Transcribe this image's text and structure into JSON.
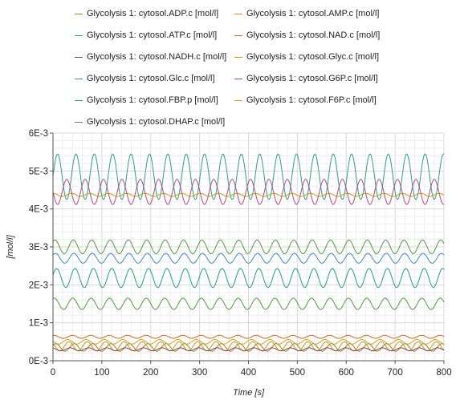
{
  "chart_data": {
    "type": "line",
    "xlabel": "Time [s]",
    "ylabel": "[mol/l]",
    "xlim": [
      0,
      800
    ],
    "ylim": [
      0,
      0.006
    ],
    "grid": true,
    "legend_position": "top",
    "x_ticks": [
      "0",
      "100",
      "200",
      "300",
      "400",
      "500",
      "600",
      "700",
      "800"
    ],
    "y_ticks": [
      "0E-3",
      "1E-3",
      "2E-3",
      "3E-3",
      "4E-3",
      "5E-3",
      "6E-3"
    ],
    "oscillation_period_s": 37.6,
    "series": [
      {
        "name": "Glycolysis 1: cytosol.ADP.c [mol/l]",
        "color": "#8a8a2a",
        "mean": 0.00035,
        "amplitude": 0.0001,
        "phase": 0.6
      },
      {
        "name": "Glycolysis 1: cytosol.AMP.c [mol/l]",
        "color": "#c8961e",
        "mean": 0.00038,
        "amplitude": 0.00012,
        "phase": 2.4
      },
      {
        "name": "Glycolysis 1: cytosol.ATP.c [mol/l]",
        "color": "#2f9e8a",
        "mean": 0.00485,
        "amplitude": 0.0006,
        "phase": 0.0
      },
      {
        "name": "Glycolysis 1: cytosol.NAD.c [mol/l]",
        "color": "#d2691e",
        "mean": 0.00063,
        "amplitude": 4e-05,
        "phase": 1.2
      },
      {
        "name": "Glycolysis 1: cytosol.NADH.c [mol/l]",
        "color": "#9a3a4a",
        "mean": 0.0003,
        "amplitude": 4e-05,
        "phase": 2.0
      },
      {
        "name": "Glycolysis 1: cytosol.Glyc.c [mol/l]",
        "color": "#c8a000",
        "mean": 0.00437,
        "amplitude": 4e-05,
        "phase": 1.5
      },
      {
        "name": "Glycolysis 1: cytosol.Glc.c [mol/l]",
        "color": "#3b8bc4",
        "mean": 0.0027,
        "amplitude": 0.00013,
        "phase": 0.7
      },
      {
        "name": "Glycolysis 1: cytosol.G6P.c [mol/l]",
        "color": "#b04a8a",
        "mean": 0.00445,
        "amplitude": 0.00033,
        "phase": 3.14
      },
      {
        "name": "Glycolysis 1: cytosol.FBP.p [mol/l]",
        "color": "#1e9e8a",
        "mean": 0.00218,
        "amplitude": 0.00025,
        "phase": 0.3
      },
      {
        "name": "Glycolysis 1: cytosol.F6P.c [mol/l]",
        "color": "#d4a017",
        "mean": 0.0005,
        "amplitude": 6e-05,
        "phase": 2.8
      },
      {
        "name": "Glycolysis 1: cytosol.DHAP.c [mol/l]",
        "color": "#4a9e3a",
        "mean": 0.003,
        "amplitude": 0.00018,
        "phase": 0.9
      },
      {
        "name": "",
        "color": "#4a9e3a",
        "mean": 0.0015,
        "amplitude": 0.00015,
        "phase": 1.1
      }
    ]
  }
}
